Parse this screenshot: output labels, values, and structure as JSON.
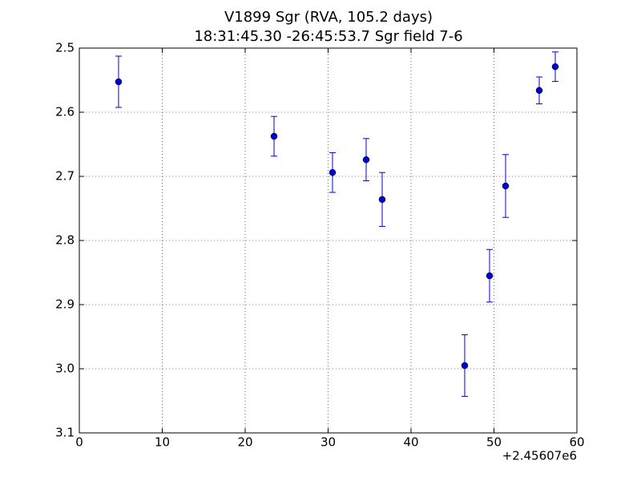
{
  "chart_data": {
    "type": "scatter",
    "title": [
      "V1899 Sgr (RVA, 105.2 days)",
      "18:31:45.30 -26:45:53.7 Sgr field 7-6"
    ],
    "x_offset_label": "+2.45607e6",
    "x": [
      4.73,
      23.48,
      30.53,
      34.59,
      36.52,
      46.47,
      49.47,
      51.4,
      55.46,
      57.39
    ],
    "y": [
      2.5525,
      2.6375,
      2.694,
      2.674,
      2.736,
      2.995,
      2.855,
      2.715,
      2.566,
      2.529
    ],
    "yerr": [
      0.04,
      0.031,
      0.031,
      0.033,
      0.042,
      0.048,
      0.041,
      0.049,
      0.021,
      0.023
    ],
    "color": "#0000cc",
    "xlim": [
      0,
      60
    ],
    "xticks": [
      0,
      10,
      20,
      30,
      40,
      50,
      60
    ],
    "ylim": [
      3.1,
      2.5
    ],
    "yticks": [
      2.5,
      2.6,
      2.7,
      2.8,
      2.9,
      {
        "value": 3,
        "label": "3.0"
      },
      3.1
    ],
    "y_inverted": true,
    "grid": true
  }
}
